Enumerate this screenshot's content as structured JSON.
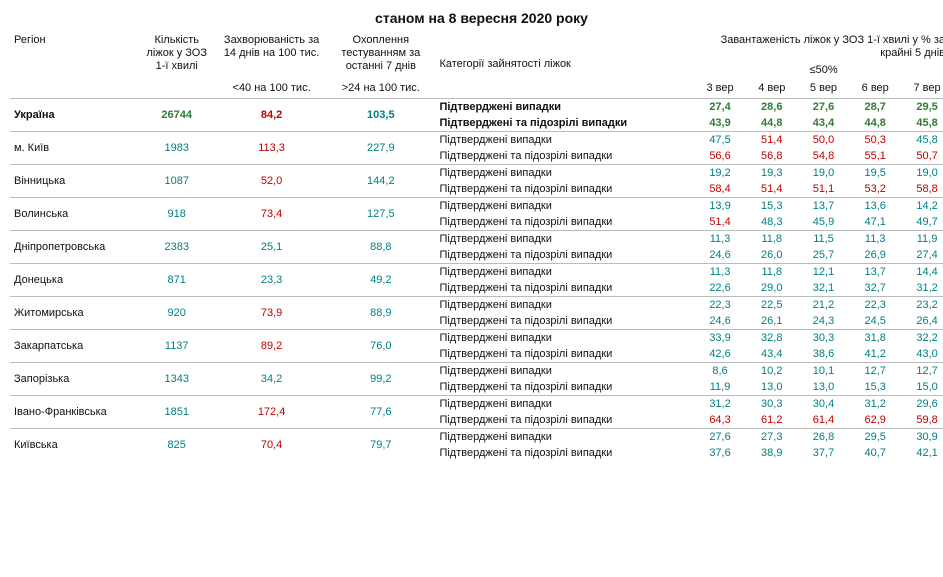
{
  "title": "станом на 8 вересня 2020 року",
  "headers": {
    "region": "Регіон",
    "beds": "Кількість ліжок у ЗОЗ 1-ї хвилі",
    "incidence": "Захворюваність за 14 днів на 100 тис.",
    "testing": "Охоплення тестуванням за останні 7 днів",
    "categories": "Категорії зайнятості ліжок",
    "occupancy_group": "Завантаженість ліжок у ЗОЗ 1-ї хвилі у % за крайні 5 днів",
    "incidence_sub": "<40 на 100 тис.",
    "testing_sub": ">24 на 100 тис.",
    "occ_sub": "≤50%",
    "dates": [
      "3 вер",
      "4 вер",
      "5 вер",
      "6 вер",
      "7 вер"
    ]
  },
  "cat_labels": {
    "confirmed": "Підтверджені випадки",
    "confirmed_susp": "Підтверджені та підозрілі випадки"
  },
  "colors": {
    "teal": "#008080",
    "red": "#c00000",
    "green": "#2e7d32"
  },
  "rows": [
    {
      "region": "Україна",
      "bold": true,
      "beds": {
        "v": "26744",
        "c": "green"
      },
      "incidence": {
        "v": "84,2",
        "c": "red"
      },
      "testing": {
        "v": "103,5",
        "c": "teal"
      },
      "r1": [
        {
          "v": "27,4",
          "c": "green"
        },
        {
          "v": "28,6",
          "c": "green"
        },
        {
          "v": "27,6",
          "c": "green"
        },
        {
          "v": "28,7",
          "c": "green"
        },
        {
          "v": "29,5",
          "c": "green"
        }
      ],
      "r2": [
        {
          "v": "43,9",
          "c": "green"
        },
        {
          "v": "44,8",
          "c": "green"
        },
        {
          "v": "43,4",
          "c": "green"
        },
        {
          "v": "44,8",
          "c": "green"
        },
        {
          "v": "45,8",
          "c": "green"
        }
      ]
    },
    {
      "region": "м. Київ",
      "beds": {
        "v": "1983",
        "c": "teal"
      },
      "incidence": {
        "v": "113,3",
        "c": "red"
      },
      "testing": {
        "v": "227,9",
        "c": "teal"
      },
      "r1": [
        {
          "v": "47,5",
          "c": "teal"
        },
        {
          "v": "51,4",
          "c": "red"
        },
        {
          "v": "50,0",
          "c": "red"
        },
        {
          "v": "50,3",
          "c": "red"
        },
        {
          "v": "45,8",
          "c": "teal"
        }
      ],
      "r2": [
        {
          "v": "56,6",
          "c": "red"
        },
        {
          "v": "56,8",
          "c": "red"
        },
        {
          "v": "54,8",
          "c": "red"
        },
        {
          "v": "55,1",
          "c": "red"
        },
        {
          "v": "50,7",
          "c": "red"
        }
      ]
    },
    {
      "region": "Вінницька",
      "beds": {
        "v": "1087",
        "c": "teal"
      },
      "incidence": {
        "v": "52,0",
        "c": "red"
      },
      "testing": {
        "v": "144,2",
        "c": "teal"
      },
      "r1": [
        {
          "v": "19,2",
          "c": "teal"
        },
        {
          "v": "19,3",
          "c": "teal"
        },
        {
          "v": "19,0",
          "c": "teal"
        },
        {
          "v": "19,5",
          "c": "teal"
        },
        {
          "v": "19,0",
          "c": "teal"
        }
      ],
      "r2": [
        {
          "v": "58,4",
          "c": "red"
        },
        {
          "v": "51,4",
          "c": "red"
        },
        {
          "v": "51,1",
          "c": "red"
        },
        {
          "v": "53,2",
          "c": "red"
        },
        {
          "v": "58,8",
          "c": "red"
        }
      ]
    },
    {
      "region": "Волинська",
      "beds": {
        "v": "918",
        "c": "teal"
      },
      "incidence": {
        "v": "73,4",
        "c": "red"
      },
      "testing": {
        "v": "127,5",
        "c": "teal"
      },
      "r1": [
        {
          "v": "13,9",
          "c": "teal"
        },
        {
          "v": "15,3",
          "c": "teal"
        },
        {
          "v": "13,7",
          "c": "teal"
        },
        {
          "v": "13,6",
          "c": "teal"
        },
        {
          "v": "14,2",
          "c": "teal"
        }
      ],
      "r2": [
        {
          "v": "51,4",
          "c": "red"
        },
        {
          "v": "48,3",
          "c": "teal"
        },
        {
          "v": "45,9",
          "c": "teal"
        },
        {
          "v": "47,1",
          "c": "teal"
        },
        {
          "v": "49,7",
          "c": "teal"
        }
      ]
    },
    {
      "region": "Дніпропетровська",
      "beds": {
        "v": "2383",
        "c": "teal"
      },
      "incidence": {
        "v": "25,1",
        "c": "teal"
      },
      "testing": {
        "v": "88,8",
        "c": "teal"
      },
      "r1": [
        {
          "v": "11,3",
          "c": "teal"
        },
        {
          "v": "11,8",
          "c": "teal"
        },
        {
          "v": "11,5",
          "c": "teal"
        },
        {
          "v": "11,3",
          "c": "teal"
        },
        {
          "v": "11,9",
          "c": "teal"
        }
      ],
      "r2": [
        {
          "v": "24,6",
          "c": "teal"
        },
        {
          "v": "26,0",
          "c": "teal"
        },
        {
          "v": "25,7",
          "c": "teal"
        },
        {
          "v": "26,9",
          "c": "teal"
        },
        {
          "v": "27,4",
          "c": "teal"
        }
      ]
    },
    {
      "region": "Донецька",
      "beds": {
        "v": "871",
        "c": "teal"
      },
      "incidence": {
        "v": "23,3",
        "c": "teal"
      },
      "testing": {
        "v": "49,2",
        "c": "teal"
      },
      "r1": [
        {
          "v": "11,3",
          "c": "teal"
        },
        {
          "v": "11,8",
          "c": "teal"
        },
        {
          "v": "12,1",
          "c": "teal"
        },
        {
          "v": "13,7",
          "c": "teal"
        },
        {
          "v": "14,4",
          "c": "teal"
        }
      ],
      "r2": [
        {
          "v": "22,6",
          "c": "teal"
        },
        {
          "v": "29,0",
          "c": "teal"
        },
        {
          "v": "32,1",
          "c": "teal"
        },
        {
          "v": "32,7",
          "c": "teal"
        },
        {
          "v": "31,2",
          "c": "teal"
        }
      ]
    },
    {
      "region": "Житомирська",
      "beds": {
        "v": "920",
        "c": "teal"
      },
      "incidence": {
        "v": "73,9",
        "c": "red"
      },
      "testing": {
        "v": "88,9",
        "c": "teal"
      },
      "r1": [
        {
          "v": "22,3",
          "c": "teal"
        },
        {
          "v": "22,5",
          "c": "teal"
        },
        {
          "v": "21,2",
          "c": "teal"
        },
        {
          "v": "22,3",
          "c": "teal"
        },
        {
          "v": "23,2",
          "c": "teal"
        }
      ],
      "r2": [
        {
          "v": "24,6",
          "c": "teal"
        },
        {
          "v": "26,1",
          "c": "teal"
        },
        {
          "v": "24,3",
          "c": "teal"
        },
        {
          "v": "24,5",
          "c": "teal"
        },
        {
          "v": "26,4",
          "c": "teal"
        }
      ]
    },
    {
      "region": "Закарпатська",
      "beds": {
        "v": "1137",
        "c": "teal"
      },
      "incidence": {
        "v": "89,2",
        "c": "red"
      },
      "testing": {
        "v": "76,0",
        "c": "teal"
      },
      "r1": [
        {
          "v": "33,9",
          "c": "teal"
        },
        {
          "v": "32,8",
          "c": "teal"
        },
        {
          "v": "30,3",
          "c": "teal"
        },
        {
          "v": "31,8",
          "c": "teal"
        },
        {
          "v": "32,2",
          "c": "teal"
        }
      ],
      "r2": [
        {
          "v": "42,6",
          "c": "teal"
        },
        {
          "v": "43,4",
          "c": "teal"
        },
        {
          "v": "38,6",
          "c": "teal"
        },
        {
          "v": "41,2",
          "c": "teal"
        },
        {
          "v": "43,0",
          "c": "teal"
        }
      ]
    },
    {
      "region": "Запорізька",
      "beds": {
        "v": "1343",
        "c": "teal"
      },
      "incidence": {
        "v": "34,2",
        "c": "teal"
      },
      "testing": {
        "v": "99,2",
        "c": "teal"
      },
      "r1": [
        {
          "v": "8,6",
          "c": "teal"
        },
        {
          "v": "10,2",
          "c": "teal"
        },
        {
          "v": "10,1",
          "c": "teal"
        },
        {
          "v": "12,7",
          "c": "teal"
        },
        {
          "v": "12,7",
          "c": "teal"
        }
      ],
      "r2": [
        {
          "v": "11,9",
          "c": "teal"
        },
        {
          "v": "13,0",
          "c": "teal"
        },
        {
          "v": "13,0",
          "c": "teal"
        },
        {
          "v": "15,3",
          "c": "teal"
        },
        {
          "v": "15,0",
          "c": "teal"
        }
      ]
    },
    {
      "region": "Івано-Франківська",
      "beds": {
        "v": "1851",
        "c": "teal"
      },
      "incidence": {
        "v": "172,4",
        "c": "red"
      },
      "testing": {
        "v": "77,6",
        "c": "teal"
      },
      "r1": [
        {
          "v": "31,2",
          "c": "teal"
        },
        {
          "v": "30,3",
          "c": "teal"
        },
        {
          "v": "30,4",
          "c": "teal"
        },
        {
          "v": "31,2",
          "c": "teal"
        },
        {
          "v": "29,6",
          "c": "teal"
        }
      ],
      "r2": [
        {
          "v": "64,3",
          "c": "red"
        },
        {
          "v": "61,2",
          "c": "red"
        },
        {
          "v": "61,4",
          "c": "red"
        },
        {
          "v": "62,9",
          "c": "red"
        },
        {
          "v": "59,8",
          "c": "red"
        }
      ]
    },
    {
      "region": "Київська",
      "beds": {
        "v": "825",
        "c": "teal"
      },
      "incidence": {
        "v": "70,4",
        "c": "red"
      },
      "testing": {
        "v": "79,7",
        "c": "teal"
      },
      "r1": [
        {
          "v": "27,6",
          "c": "teal"
        },
        {
          "v": "27,3",
          "c": "teal"
        },
        {
          "v": "26,8",
          "c": "teal"
        },
        {
          "v": "29,5",
          "c": "teal"
        },
        {
          "v": "30,9",
          "c": "teal"
        }
      ],
      "r2": [
        {
          "v": "37,6",
          "c": "teal"
        },
        {
          "v": "38,9",
          "c": "teal"
        },
        {
          "v": "37,7",
          "c": "teal"
        },
        {
          "v": "40,7",
          "c": "teal"
        },
        {
          "v": "42,1",
          "c": "teal"
        }
      ]
    }
  ]
}
